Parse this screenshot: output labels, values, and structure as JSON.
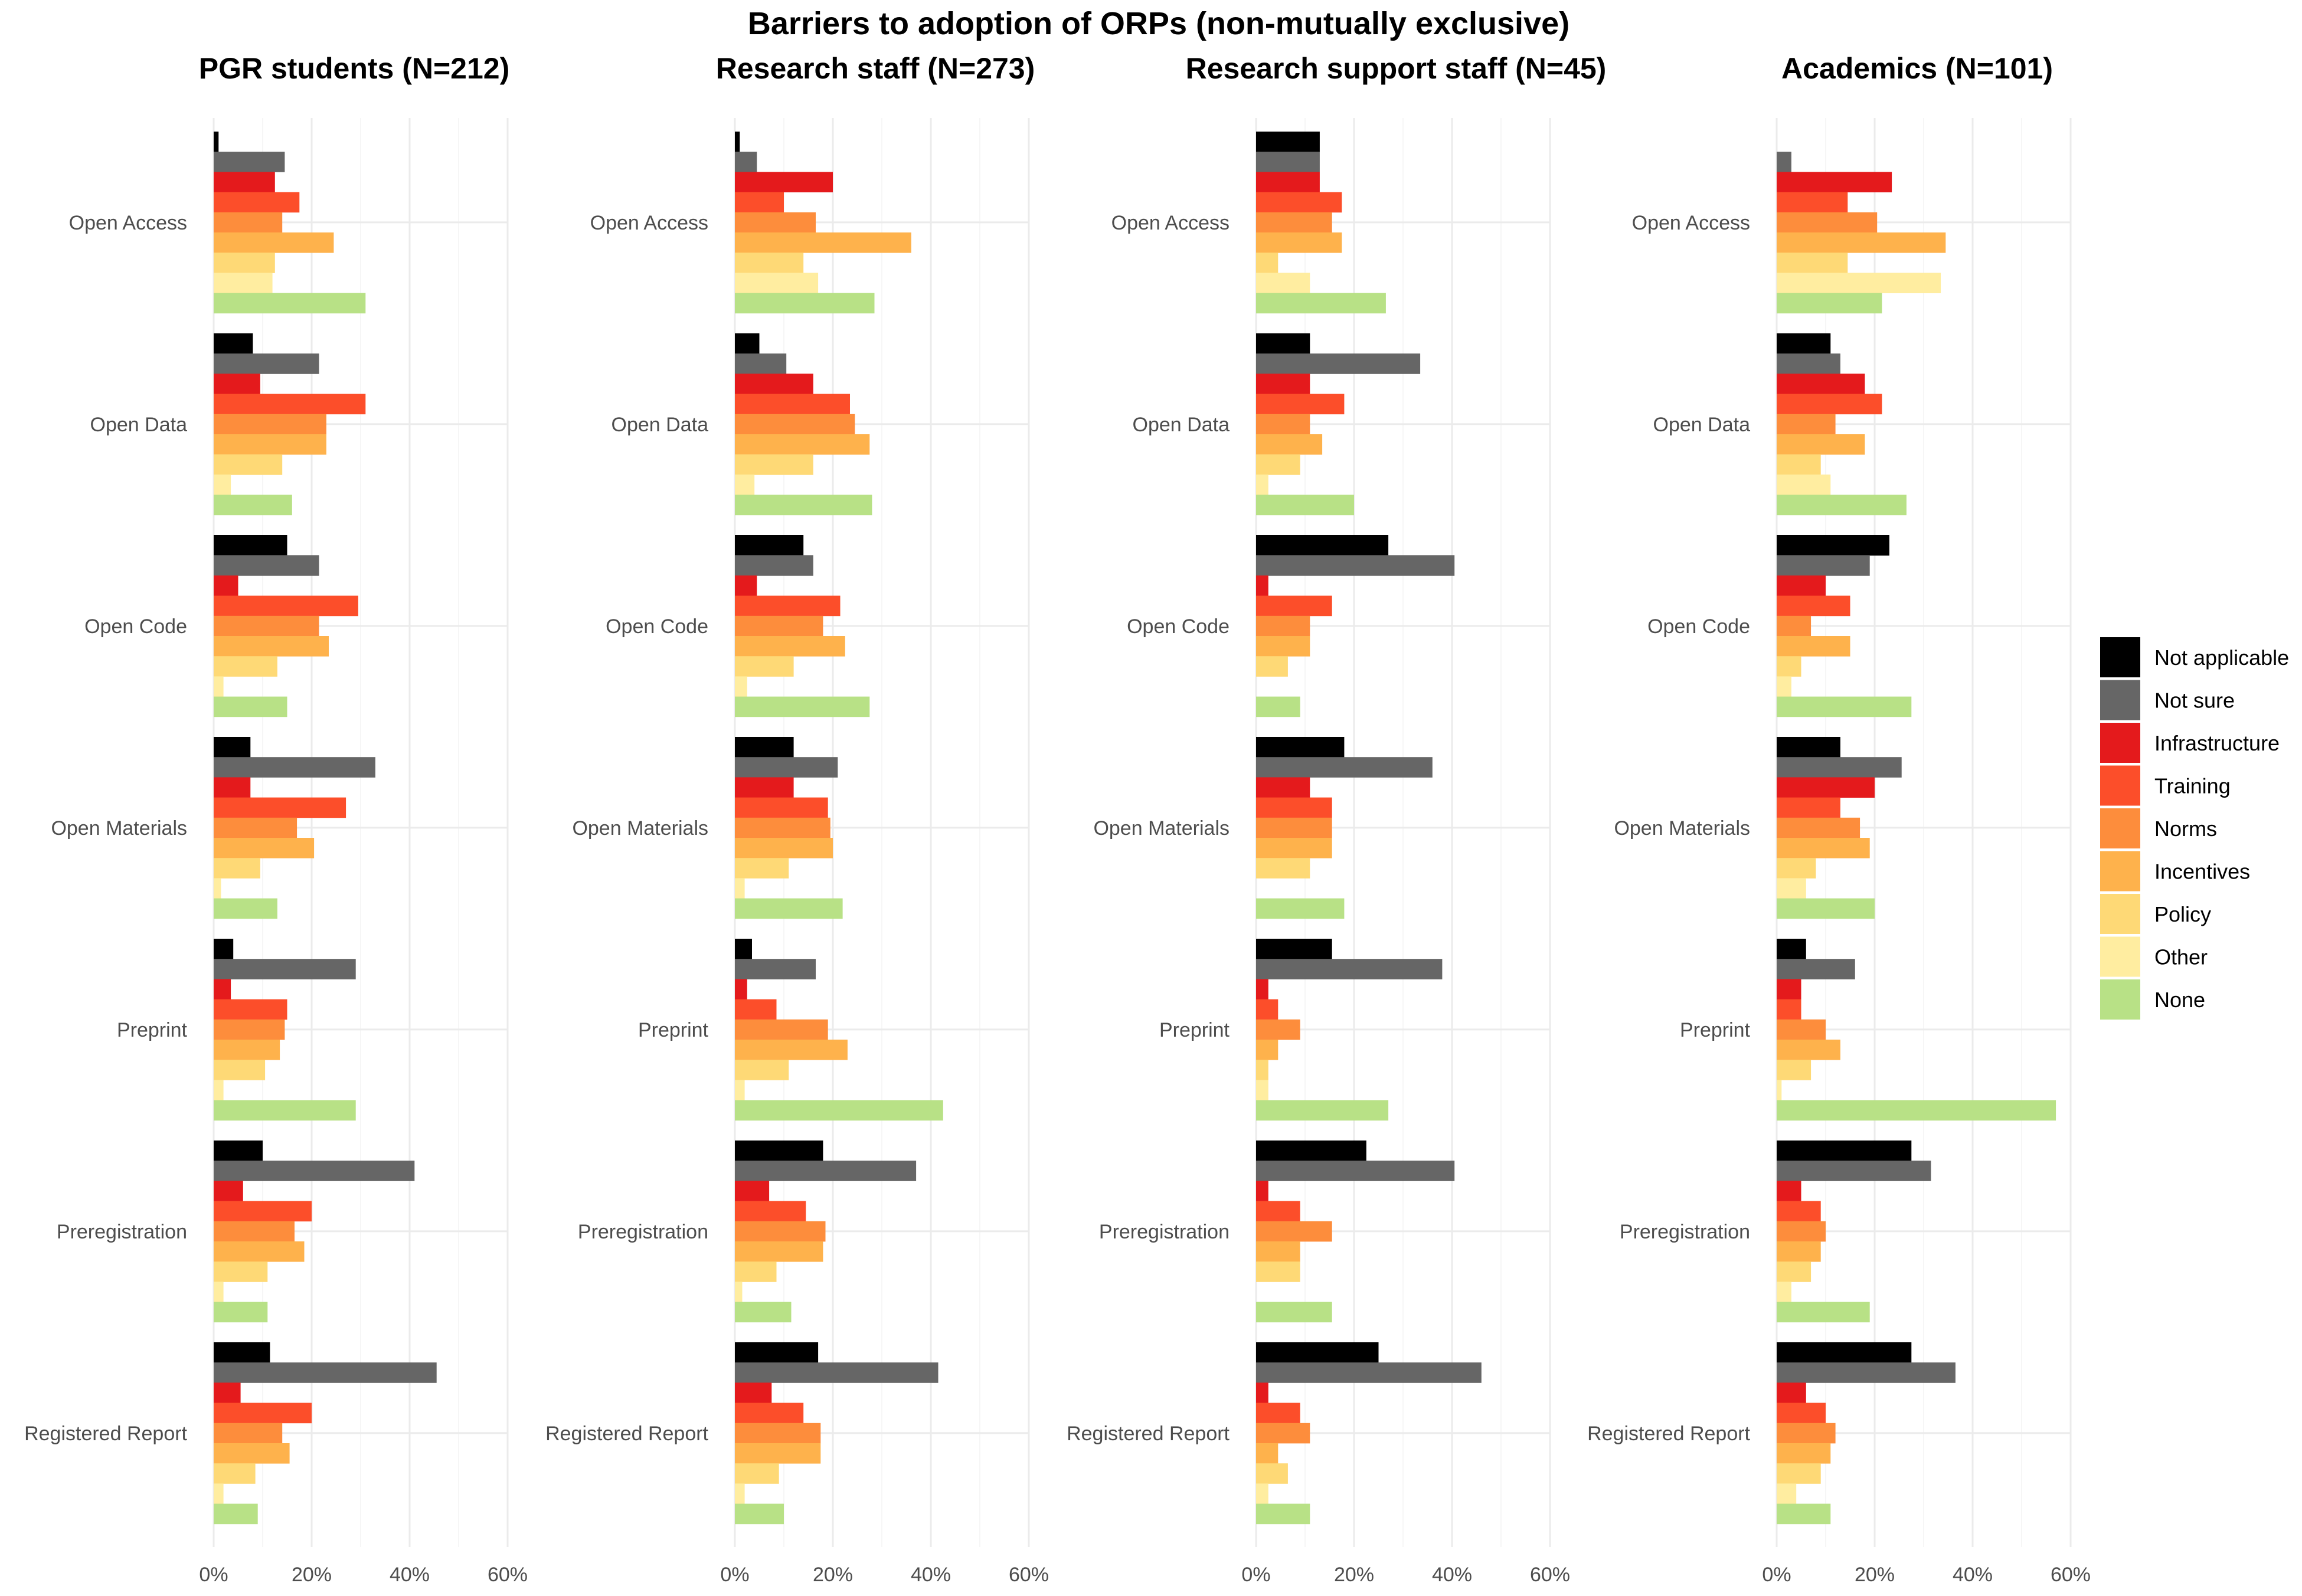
{
  "chart_data": {
    "type": "bar",
    "orientation": "horizontal",
    "title": "Barriers to adoption of ORPs (non-mutually exclusive)",
    "xlim": [
      0,
      0.6
    ],
    "x_ticks": [
      0,
      0.2,
      0.4,
      0.6
    ],
    "x_tick_labels": [
      "0%",
      "20%",
      "40%",
      "60%"
    ],
    "legend_position": "right",
    "categories": [
      "Open Access",
      "Open Data",
      "Open Code",
      "Open Materials",
      "Preprint",
      "Preregistration",
      "Registered Report"
    ],
    "series": [
      {
        "name": "Not applicable",
        "color": "#000000"
      },
      {
        "name": "Not sure",
        "color": "#666666"
      },
      {
        "name": "Infrastructure",
        "color": "#e41a1c"
      },
      {
        "name": "Training",
        "color": "#fc4e2a"
      },
      {
        "name": "Norms",
        "color": "#fd8d3c"
      },
      {
        "name": "Incentives",
        "color": "#feb24c"
      },
      {
        "name": "Policy",
        "color": "#fed976"
      },
      {
        "name": "Other",
        "color": "#ffeda0"
      },
      {
        "name": "None",
        "color": "#b8e186"
      }
    ],
    "panels": [
      {
        "title": "PGR students (N=212)",
        "values": [
          [
            0.01,
            0.145,
            0.125,
            0.175,
            0.14,
            0.245,
            0.125,
            0.12,
            0.31
          ],
          [
            0.08,
            0.215,
            0.095,
            0.31,
            0.23,
            0.23,
            0.14,
            0.035,
            0.16
          ],
          [
            0.15,
            0.215,
            0.05,
            0.295,
            0.215,
            0.235,
            0.13,
            0.02,
            0.15
          ],
          [
            0.075,
            0.33,
            0.075,
            0.27,
            0.17,
            0.205,
            0.095,
            0.015,
            0.13
          ],
          [
            0.04,
            0.29,
            0.035,
            0.15,
            0.145,
            0.135,
            0.105,
            0.02,
            0.29
          ],
          [
            0.1,
            0.41,
            0.06,
            0.2,
            0.165,
            0.185,
            0.11,
            0.02,
            0.11
          ],
          [
            0.115,
            0.455,
            0.055,
            0.2,
            0.14,
            0.155,
            0.085,
            0.02,
            0.09
          ]
        ]
      },
      {
        "title": "Research staff (N=273)",
        "values": [
          [
            0.01,
            0.045,
            0.2,
            0.1,
            0.165,
            0.36,
            0.14,
            0.17,
            0.285
          ],
          [
            0.05,
            0.105,
            0.16,
            0.235,
            0.245,
            0.275,
            0.16,
            0.04,
            0.28
          ],
          [
            0.14,
            0.16,
            0.045,
            0.215,
            0.18,
            0.225,
            0.12,
            0.025,
            0.275
          ],
          [
            0.12,
            0.21,
            0.12,
            0.19,
            0.195,
            0.2,
            0.11,
            0.02,
            0.22
          ],
          [
            0.035,
            0.165,
            0.025,
            0.085,
            0.19,
            0.23,
            0.11,
            0.02,
            0.425
          ],
          [
            0.18,
            0.37,
            0.07,
            0.145,
            0.185,
            0.18,
            0.085,
            0.015,
            0.115
          ],
          [
            0.17,
            0.415,
            0.075,
            0.14,
            0.175,
            0.175,
            0.09,
            0.02,
            0.1
          ]
        ]
      },
      {
        "title": "Research support staff (N=45)",
        "values": [
          [
            0.13,
            0.13,
            0.13,
            0.175,
            0.155,
            0.175,
            0.045,
            0.11,
            0.265
          ],
          [
            0.11,
            0.335,
            0.11,
            0.18,
            0.11,
            0.135,
            0.09,
            0.025,
            0.2
          ],
          [
            0.27,
            0.405,
            0.025,
            0.155,
            0.11,
            0.11,
            0.065,
            0.0,
            0.09
          ],
          [
            0.18,
            0.36,
            0.11,
            0.155,
            0.155,
            0.155,
            0.11,
            0.0,
            0.18
          ],
          [
            0.155,
            0.38,
            0.025,
            0.045,
            0.09,
            0.045,
            0.025,
            0.025,
            0.27
          ],
          [
            0.225,
            0.405,
            0.025,
            0.09,
            0.155,
            0.09,
            0.09,
            0.0,
            0.155
          ],
          [
            0.25,
            0.46,
            0.025,
            0.09,
            0.11,
            0.045,
            0.065,
            0.025,
            0.11
          ]
        ]
      },
      {
        "title": "Academics (N=101)",
        "values": [
          [
            0.0,
            0.03,
            0.235,
            0.145,
            0.205,
            0.345,
            0.145,
            0.335,
            0.215
          ],
          [
            0.11,
            0.13,
            0.18,
            0.215,
            0.12,
            0.18,
            0.09,
            0.11,
            0.265
          ],
          [
            0.23,
            0.19,
            0.1,
            0.15,
            0.07,
            0.15,
            0.05,
            0.03,
            0.275
          ],
          [
            0.13,
            0.255,
            0.2,
            0.13,
            0.17,
            0.19,
            0.08,
            0.06,
            0.2
          ],
          [
            0.06,
            0.16,
            0.05,
            0.05,
            0.1,
            0.13,
            0.07,
            0.01,
            0.57
          ],
          [
            0.275,
            0.315,
            0.05,
            0.09,
            0.1,
            0.09,
            0.07,
            0.03,
            0.19
          ],
          [
            0.275,
            0.365,
            0.06,
            0.1,
            0.12,
            0.11,
            0.09,
            0.04,
            0.11
          ]
        ]
      }
    ]
  }
}
